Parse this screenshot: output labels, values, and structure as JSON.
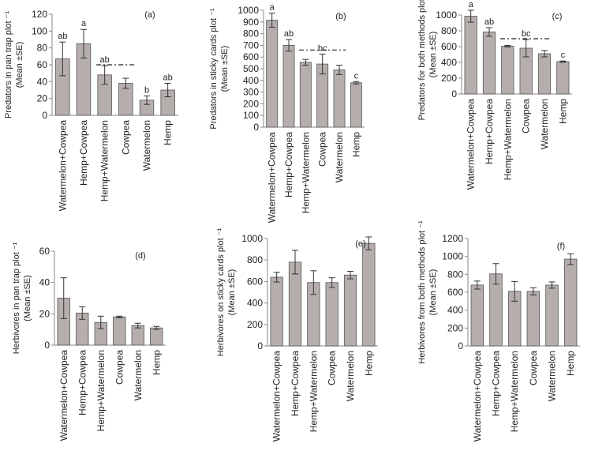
{
  "figure": {
    "background": "#ffffff",
    "bar_color": "#b5aeac",
    "bar_edge": "#555555"
  },
  "chart_data": [
    {
      "type": "bar",
      "panel": "(a)",
      "ylabel_lines": [
        "Predators in pan trap plot ⁻¹",
        "(Mean ±SE)"
      ],
      "categories": [
        "Watermelon+Cowpea",
        "Hemp+Cowpea",
        "Hemp+Watermelon",
        "Cowpea",
        "Watermelon",
        "Hemp"
      ],
      "values": [
        67,
        85,
        48,
        38,
        18,
        30
      ],
      "errors": [
        20,
        17,
        11,
        6,
        5,
        8
      ],
      "letters": [
        "ab",
        "a",
        "ab",
        "",
        "b",
        "ab"
      ],
      "ylim": [
        0,
        120
      ],
      "yticks": [
        0,
        20,
        40,
        60,
        80,
        100,
        120
      ],
      "dash_line": {
        "value": 60,
        "from": 2,
        "to": 3
      }
    },
    {
      "type": "bar",
      "panel": "(b)",
      "ylabel_lines": [
        "Predators in sticky cards plot ⁻¹",
        "(Mean ±SE)"
      ],
      "categories": [
        "Watermelon+Cowpea",
        "Hemp+Cowpea",
        "Hemp+Watermelon",
        "Cowpea",
        "Watermelon",
        "Hemp"
      ],
      "values": [
        915,
        700,
        555,
        540,
        490,
        380
      ],
      "errors": [
        60,
        50,
        25,
        85,
        40,
        10
      ],
      "letters": [
        "a",
        "ab",
        "",
        "bc",
        "",
        "c"
      ],
      "ylim": [
        0,
        1000
      ],
      "yticks": [
        0,
        100,
        200,
        300,
        400,
        500,
        600,
        700,
        800,
        900,
        1000
      ],
      "dash_line": {
        "value": 660,
        "from": 2,
        "to": 4
      }
    },
    {
      "type": "bar",
      "panel": "(c)",
      "ylabel_lines": [
        "Predators for both methods plot ⁻¹",
        "(Mean ±SE)"
      ],
      "categories": [
        "Watermelon+Cowpea",
        "Hemp+Cowpea",
        "Hemp+Watermelon",
        "Cowpea",
        "Watermelon",
        "Hemp"
      ],
      "values": [
        985,
        785,
        605,
        580,
        510,
        410
      ],
      "errors": [
        75,
        55,
        10,
        110,
        40,
        8
      ],
      "letters": [
        "a",
        "ab",
        "",
        "bc",
        "",
        "c"
      ],
      "ylim": [
        0,
        1000
      ],
      "yticks": [
        0,
        200,
        400,
        600,
        800,
        1000
      ],
      "dash_line": {
        "value": 700,
        "from": 2,
        "to": 4
      }
    },
    {
      "type": "bar",
      "panel": "(d)",
      "ylabel_lines": [
        "Herbivores in pan trap plot ⁻¹",
        "(Mean ±SE)"
      ],
      "categories": [
        "Watermelon+Cowpea",
        "Hemp+Cowpea",
        "Hemp+Watermelon",
        "Cowpea",
        "Watermelon",
        "Hemp"
      ],
      "values": [
        30,
        20.5,
        14.5,
        18,
        12.5,
        11
      ],
      "errors": [
        13,
        4,
        4,
        0.5,
        1.5,
        1
      ],
      "letters": [
        "",
        "",
        "",
        "",
        "",
        ""
      ],
      "ylim": [
        0,
        60
      ],
      "yticks": [
        0,
        20,
        40,
        60
      ]
    },
    {
      "type": "bar",
      "panel": "(e)",
      "ylabel_lines": [
        "Herbivores on sticky cards plot ⁻¹",
        "(Mean ±SE)"
      ],
      "categories": [
        "Watermelon+Cowpea",
        "Hemp+Cowpea",
        "Hemp+Watermelon",
        "Cowpea",
        "Watermelon",
        "Hemp"
      ],
      "values": [
        640,
        780,
        590,
        590,
        660,
        955
      ],
      "errors": [
        45,
        110,
        110,
        45,
        35,
        60
      ],
      "letters": [
        "",
        "",
        "",
        "",
        "",
        ""
      ],
      "ylim": [
        0,
        1000
      ],
      "yticks": [
        0,
        200,
        400,
        600,
        800,
        1000
      ]
    },
    {
      "type": "bar",
      "panel": "(f)",
      "ylabel_lines": [
        "Herbivores  from both methods plot ⁻¹",
        "(Mean ±SE)"
      ],
      "categories": [
        "Watermelon+Cowpea",
        "Hemp+Cowpea",
        "Hemp+Watermelon",
        "Cowpea",
        "Watermelon",
        "Hemp"
      ],
      "values": [
        680,
        805,
        610,
        610,
        680,
        970
      ],
      "errors": [
        45,
        115,
        110,
        40,
        35,
        60
      ],
      "letters": [
        "",
        "",
        "",
        "",
        "",
        ""
      ],
      "ylim": [
        0,
        1200
      ],
      "yticks": [
        0,
        200,
        400,
        600,
        800,
        1000,
        1200
      ]
    }
  ]
}
